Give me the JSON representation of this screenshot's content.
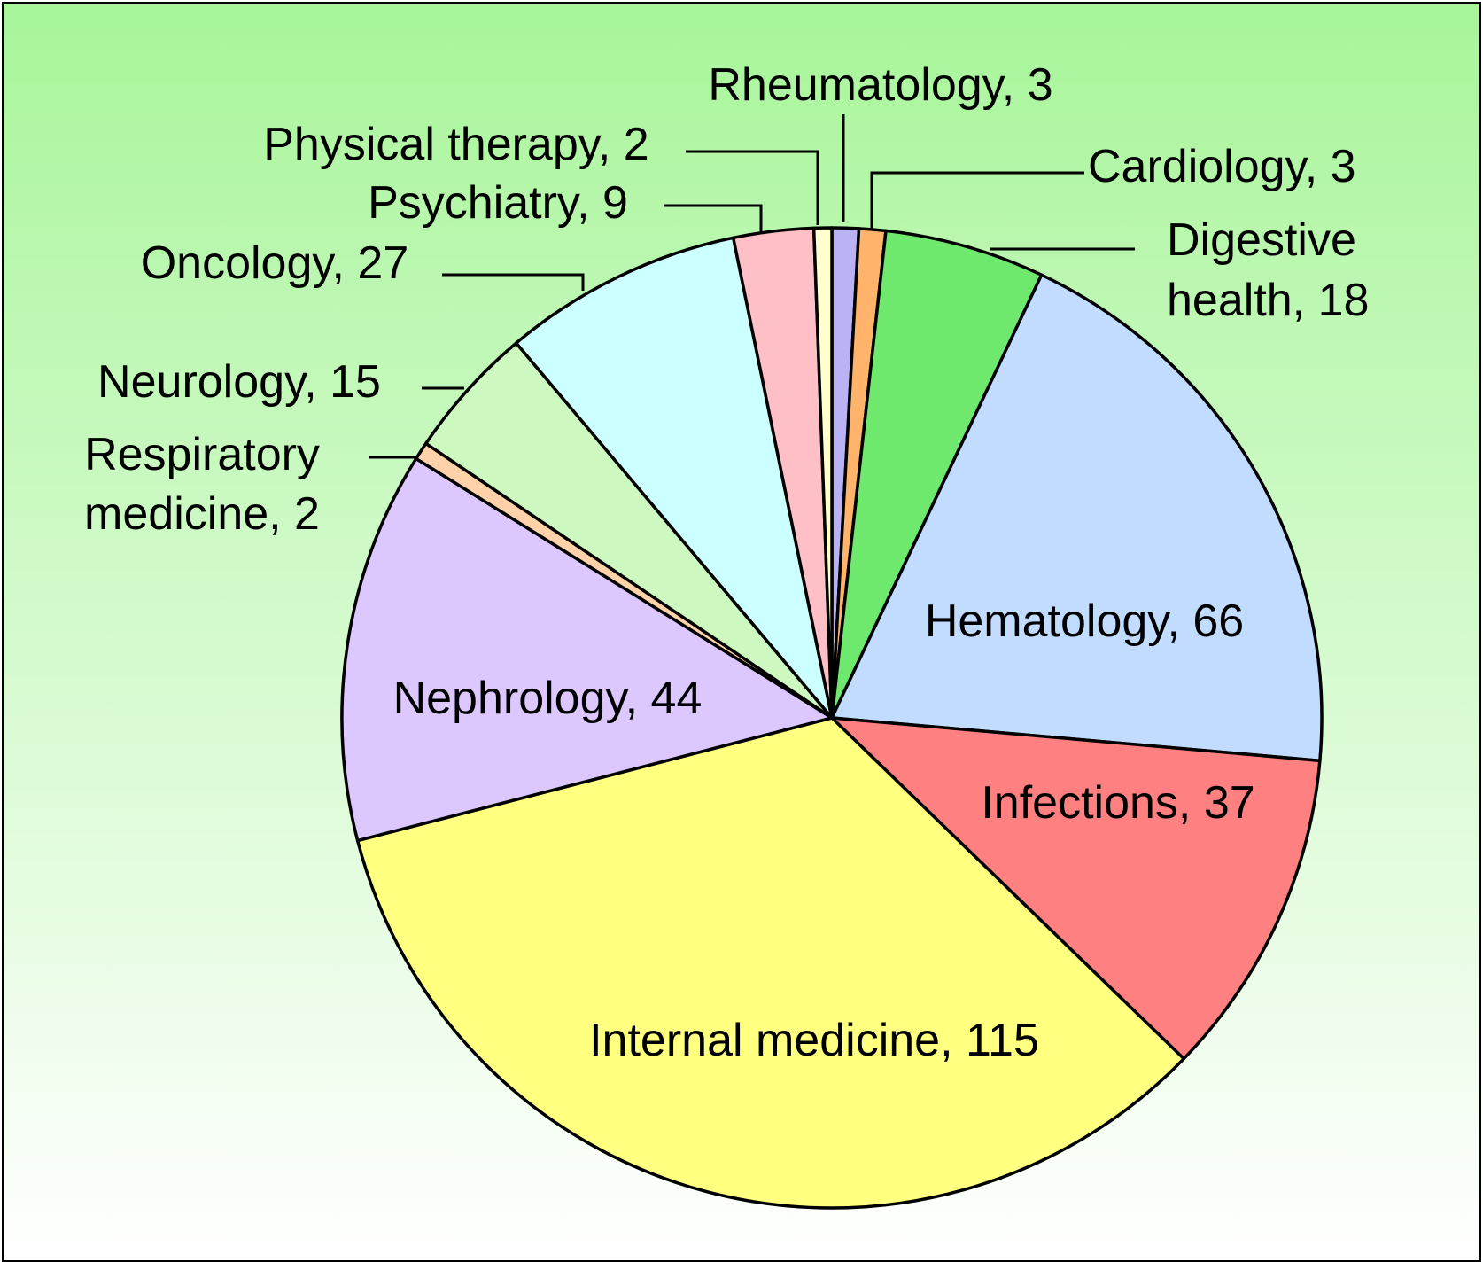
{
  "chart_data": {
    "type": "pie",
    "title": "",
    "background": {
      "top": "#a8f59a",
      "bottom": "#ffffff"
    },
    "slices": [
      {
        "name": "Rheumatology",
        "value": 3,
        "color": "#b9b3f5",
        "label": "Rheumatology, 3"
      },
      {
        "name": "Cardiology",
        "value": 3,
        "color": "#ffb36b",
        "label": "Cardiology, 3"
      },
      {
        "name": "Digestive health",
        "value": 18,
        "color": "#6ee96e",
        "label_lines": [
          "Digestive",
          "health, 18"
        ]
      },
      {
        "name": "Hematology",
        "value": 66,
        "color": "#c2dcff",
        "label": "Hematology, 66"
      },
      {
        "name": "Infections",
        "value": 37,
        "color": "#ff8080",
        "label": "Infections, 37"
      },
      {
        "name": "Internal medicine",
        "value": 115,
        "color": "#ffff80",
        "label": "Internal medicine, 115"
      },
      {
        "name": "Nephrology",
        "value": 44,
        "color": "#dcc8ff",
        "label": "Nephrology, 44"
      },
      {
        "name": "Respiratory medicine",
        "value": 2,
        "color": "#ffd2aa",
        "label_lines": [
          "Respiratory",
          "medicine, 2"
        ]
      },
      {
        "name": "Neurology",
        "value": 15,
        "color": "#cdf9c0",
        "label": "Neurology, 15"
      },
      {
        "name": "Oncology",
        "value": 27,
        "color": "#ccffff",
        "label": "Oncology, 27"
      },
      {
        "name": "Psychiatry",
        "value": 9,
        "color": "#ffbfc6",
        "label": "Psychiatry, 9"
      },
      {
        "name": "Physical therapy",
        "value": 2,
        "color": "#ffffd0",
        "label": "Physical therapy, 2"
      }
    ]
  }
}
